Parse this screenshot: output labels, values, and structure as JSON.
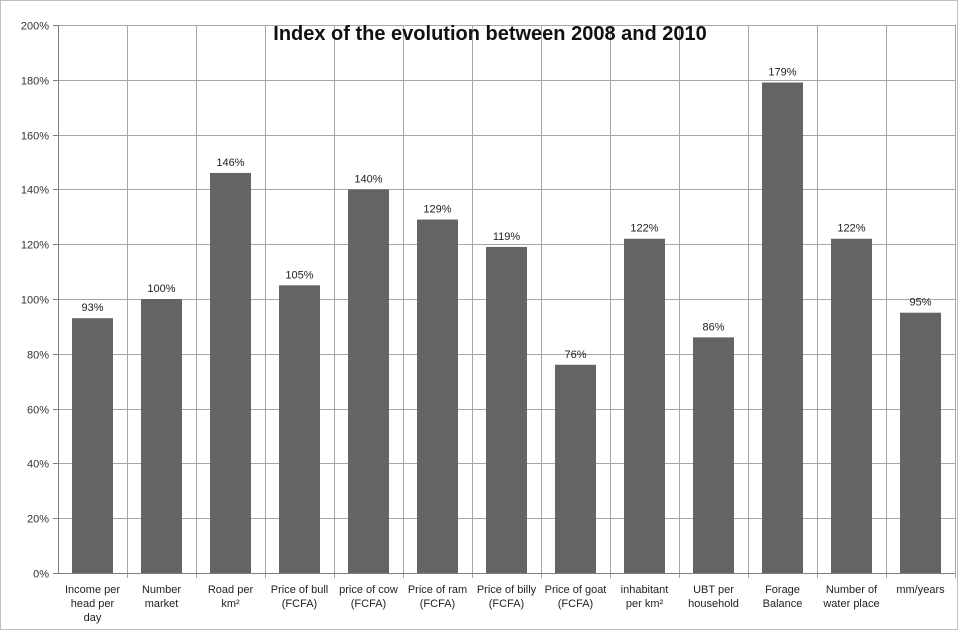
{
  "chart_data": {
    "type": "bar",
    "title": "Index of the evolution between 2008 and 2010",
    "xlabel": "",
    "ylabel": "",
    "ylim": [
      0,
      200
    ],
    "yticks": [
      0,
      20,
      40,
      60,
      80,
      100,
      120,
      140,
      160,
      180,
      200
    ],
    "ytick_suffix": "%",
    "grid": true,
    "legend": "none",
    "bar_color": "#646464",
    "categories": [
      [
        "Income per",
        "head per",
        "day"
      ],
      [
        "Number",
        "market"
      ],
      [
        "Road per",
        "km²"
      ],
      [
        "Price of bull",
        "(FCFA)"
      ],
      [
        "price of cow",
        "(FCFA)"
      ],
      [
        "Price of ram",
        "(FCFA)"
      ],
      [
        "Price of billy",
        "(FCFA)"
      ],
      [
        "Price of goat",
        "(FCFA)"
      ],
      [
        "inhabitant",
        "per km²"
      ],
      [
        "UBT per",
        "household"
      ],
      [
        "Forage",
        "Balance"
      ],
      [
        "Number of",
        "water place"
      ],
      [
        "mm/years"
      ]
    ],
    "values": [
      93,
      100,
      146,
      105,
      140,
      129,
      119,
      76,
      122,
      86,
      179,
      122,
      95
    ],
    "data_labels": [
      "93%",
      "100%",
      "146%",
      "105%",
      "140%",
      "129%",
      "119%",
      "76%",
      "122%",
      "86%",
      "179%",
      "122%",
      "95%"
    ]
  }
}
